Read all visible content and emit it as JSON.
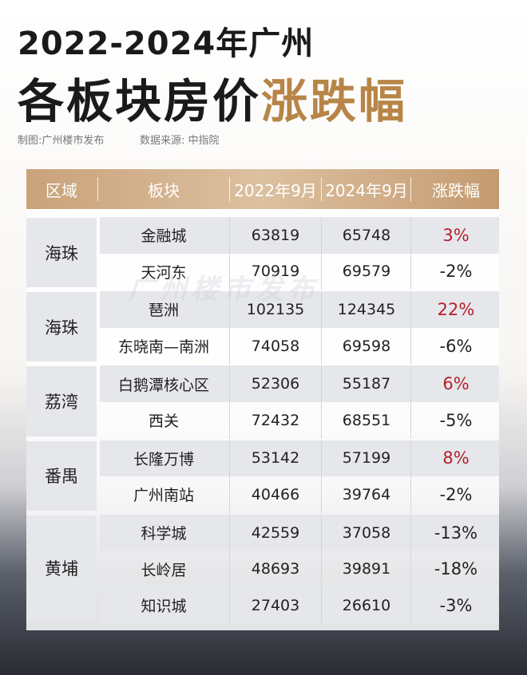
{
  "header": {
    "title_line1": "2022-2024年广州",
    "title_line2": "各板块房价",
    "title_highlight": "涨跌幅",
    "credit": "制图:广州楼市发布",
    "source": "数据来源: 中指院"
  },
  "watermark": "广州楼市发布",
  "table": {
    "columns": [
      "区域",
      "板块",
      "2022年9月",
      "2024年9月",
      "涨跌幅"
    ],
    "groups": [
      {
        "region": "海珠",
        "rows": [
          [
            "金融城",
            "63819",
            "65748",
            "3%"
          ],
          [
            "天河东",
            "70919",
            "69579",
            "-2%"
          ]
        ]
      },
      {
        "region": "海珠",
        "rows": [
          [
            "琶洲",
            "102135",
            "124345",
            "22%"
          ],
          [
            "东晓南—南洲",
            "74058",
            "69598",
            "-6%"
          ]
        ]
      },
      {
        "region": "荔湾",
        "rows": [
          [
            "白鹅潭核心区",
            "52306",
            "55187",
            "6%"
          ],
          [
            "西关",
            "72432",
            "68551",
            "-5%"
          ]
        ]
      },
      {
        "region": "番禺",
        "rows": [
          [
            "长隆万博",
            "53142",
            "57199",
            "8%"
          ],
          [
            "广州南站",
            "40466",
            "39764",
            "-2%"
          ]
        ]
      },
      {
        "region": "黄埔",
        "rows": [
          [
            "科学城",
            "42559",
            "37058",
            "-13%"
          ],
          [
            "长岭居",
            "48693",
            "39891",
            "-18%"
          ],
          [
            "知识城",
            "27403",
            "26610",
            "-3%"
          ]
        ]
      }
    ]
  }
}
